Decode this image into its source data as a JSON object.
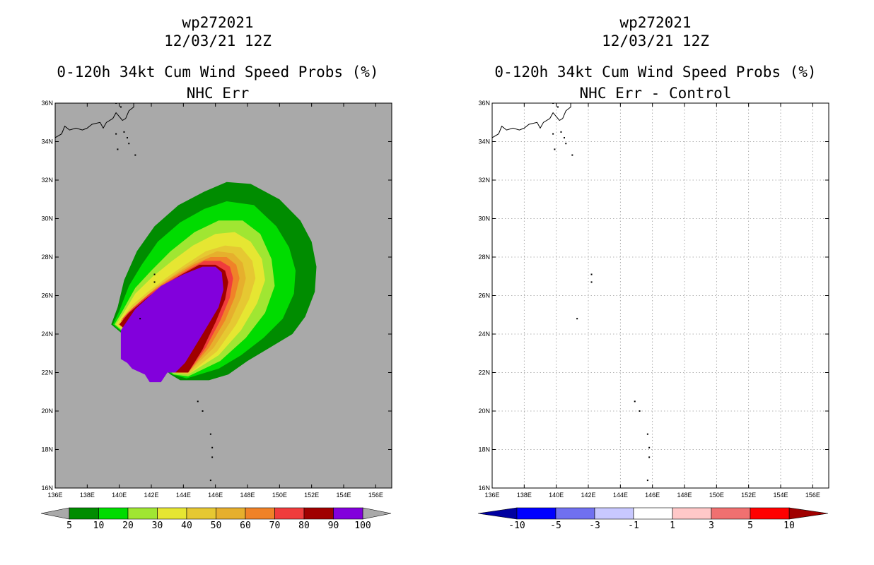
{
  "chart_data": [
    {
      "type": "heatmap",
      "panel": "left",
      "title_line1": "wp272021",
      "title_line2": "12/03/21 12Z",
      "title_line3": "0-120h 34kt Cum Wind Speed Probs (%)",
      "title_line4": "NHC Err",
      "xlim": [
        136,
        157
      ],
      "ylim": [
        16,
        36
      ],
      "x_ticks": [
        "136E",
        "138E",
        "140E",
        "142E",
        "144E",
        "146E",
        "148E",
        "150E",
        "152E",
        "154E",
        "156E"
      ],
      "y_ticks": [
        "16N",
        "18N",
        "20N",
        "22N",
        "24N",
        "26N",
        "28N",
        "30N",
        "32N",
        "34N",
        "36N"
      ],
      "grid": false,
      "background": "#a9a9a9",
      "colorbar": {
        "levels": [
          "5",
          "10",
          "20",
          "30",
          "40",
          "50",
          "60",
          "70",
          "80",
          "90",
          "100"
        ],
        "colors": [
          "#008c00",
          "#00dc00",
          "#a0e632",
          "#e6e632",
          "#e6c832",
          "#e6af2d",
          "#f08228",
          "#f03c3c",
          "#a00000",
          "#8200dc"
        ]
      },
      "probability_field_contours": [
        {
          "min": 5,
          "color": "#008c00",
          "points": [
            [
              143.8,
              21.6
            ],
            [
              145.6,
              21.6
            ],
            [
              146.8,
              21.9
            ],
            [
              148.0,
              22.6
            ],
            [
              149.6,
              23.4
            ],
            [
              150.8,
              24.0
            ],
            [
              151.6,
              24.9
            ],
            [
              152.2,
              26.2
            ],
            [
              152.3,
              27.5
            ],
            [
              152.0,
              28.8
            ],
            [
              151.3,
              29.9
            ],
            [
              150.0,
              31.0
            ],
            [
              148.2,
              31.8
            ],
            [
              146.7,
              31.9
            ],
            [
              145.3,
              31.4
            ],
            [
              143.7,
              30.7
            ],
            [
              142.2,
              29.6
            ],
            [
              141.1,
              28.3
            ],
            [
              140.3,
              26.8
            ],
            [
              139.9,
              25.4
            ],
            [
              139.5,
              24.5
            ],
            [
              143.2,
              21.9
            ]
          ]
        },
        {
          "min": 10,
          "color": "#00dc00",
          "points": [
            [
              144.2,
              21.7
            ],
            [
              146.2,
              22.2
            ],
            [
              147.6,
              22.9
            ],
            [
              149.0,
              23.8
            ],
            [
              150.2,
              24.8
            ],
            [
              150.9,
              26.1
            ],
            [
              151.0,
              27.3
            ],
            [
              150.6,
              28.5
            ],
            [
              149.8,
              29.6
            ],
            [
              148.4,
              30.7
            ],
            [
              146.7,
              30.9
            ],
            [
              145.3,
              30.5
            ],
            [
              143.8,
              29.8
            ],
            [
              142.4,
              28.8
            ],
            [
              141.4,
              27.6
            ],
            [
              140.6,
              26.5
            ],
            [
              140.0,
              25.2
            ],
            [
              139.6,
              24.5
            ],
            [
              143.3,
              21.9
            ]
          ]
        },
        {
          "min": 20,
          "color": "#a0e632",
          "points": [
            [
              144.3,
              21.8
            ],
            [
              146.3,
              22.6
            ],
            [
              147.9,
              23.8
            ],
            [
              149.1,
              25.1
            ],
            [
              149.7,
              26.5
            ],
            [
              149.5,
              27.9
            ],
            [
              148.8,
              29.2
            ],
            [
              147.7,
              29.9
            ],
            [
              146.2,
              29.9
            ],
            [
              144.7,
              29.3
            ],
            [
              143.2,
              28.3
            ],
            [
              142.0,
              27.3
            ],
            [
              141.0,
              26.4
            ],
            [
              140.2,
              25.2
            ],
            [
              139.7,
              24.5
            ],
            [
              143.4,
              21.9
            ]
          ]
        },
        {
          "min": 30,
          "color": "#e6e632",
          "points": [
            [
              144.3,
              21.9
            ],
            [
              146.2,
              22.9
            ],
            [
              147.6,
              24.2
            ],
            [
              148.6,
              25.6
            ],
            [
              149.1,
              26.8
            ],
            [
              148.9,
              27.9
            ],
            [
              148.2,
              28.8
            ],
            [
              147.2,
              29.3
            ],
            [
              146.0,
              29.2
            ],
            [
              144.6,
              28.6
            ],
            [
              143.3,
              27.8
            ],
            [
              142.1,
              27.0
            ],
            [
              141.0,
              26.1
            ],
            [
              140.2,
              25.0
            ],
            [
              139.8,
              24.5
            ],
            [
              143.4,
              22.0
            ]
          ]
        },
        {
          "min": 40,
          "color": "#e6c832",
          "points": [
            [
              144.3,
              21.9
            ],
            [
              146.1,
              23.1
            ],
            [
              147.3,
              24.5
            ],
            [
              148.1,
              25.8
            ],
            [
              148.5,
              26.9
            ],
            [
              148.3,
              27.8
            ],
            [
              147.6,
              28.5
            ],
            [
              146.6,
              28.6
            ],
            [
              145.4,
              28.3
            ],
            [
              144.1,
              27.6
            ],
            [
              142.9,
              26.9
            ],
            [
              141.8,
              26.2
            ],
            [
              140.8,
              25.5
            ],
            [
              140.1,
              24.7
            ],
            [
              139.9,
              24.5
            ],
            [
              143.5,
              22.0
            ]
          ]
        },
        {
          "min": 50,
          "color": "#e6af2d",
          "points": [
            [
              144.3,
              22.0
            ],
            [
              145.9,
              23.3
            ],
            [
              146.9,
              24.6
            ],
            [
              147.6,
              25.9
            ],
            [
              147.9,
              26.9
            ],
            [
              147.7,
              27.7
            ],
            [
              147.1,
              28.2
            ],
            [
              146.1,
              28.3
            ],
            [
              145.0,
              27.9
            ],
            [
              143.8,
              27.3
            ],
            [
              142.6,
              26.6
            ],
            [
              141.6,
              25.9
            ],
            [
              140.7,
              25.2
            ],
            [
              140.1,
              24.7
            ],
            [
              143.5,
              22.0
            ]
          ]
        },
        {
          "min": 60,
          "color": "#f08228",
          "points": [
            [
              144.3,
              22.0
            ],
            [
              145.6,
              23.3
            ],
            [
              146.6,
              24.7
            ],
            [
              147.2,
              25.9
            ],
            [
              147.5,
              26.9
            ],
            [
              147.3,
              27.6
            ],
            [
              146.7,
              28.0
            ],
            [
              145.7,
              28.0
            ],
            [
              144.6,
              27.6
            ],
            [
              143.4,
              27.0
            ],
            [
              142.3,
              26.4
            ],
            [
              141.3,
              25.7
            ],
            [
              140.5,
              25.1
            ],
            [
              140.1,
              24.7
            ],
            [
              143.5,
              22.0
            ]
          ]
        },
        {
          "min": 70,
          "color": "#f03c3c",
          "points": [
            [
              144.3,
              22.0
            ],
            [
              145.4,
              23.3
            ],
            [
              146.3,
              24.7
            ],
            [
              146.9,
              25.9
            ],
            [
              147.1,
              26.9
            ],
            [
              146.9,
              27.5
            ],
            [
              146.3,
              27.8
            ],
            [
              145.3,
              27.8
            ],
            [
              144.2,
              27.3
            ],
            [
              143.0,
              26.7
            ],
            [
              141.9,
              26.1
            ],
            [
              140.9,
              25.4
            ],
            [
              140.2,
              24.8
            ],
            [
              143.5,
              22.0
            ]
          ]
        },
        {
          "min": 80,
          "color": "#a00000",
          "points": [
            [
              144.3,
              22.0
            ],
            [
              145.2,
              23.2
            ],
            [
              146.0,
              24.6
            ],
            [
              146.6,
              25.8
            ],
            [
              146.8,
              26.7
            ],
            [
              146.6,
              27.3
            ],
            [
              146.0,
              27.6
            ],
            [
              145.0,
              27.6
            ],
            [
              143.9,
              27.1
            ],
            [
              142.7,
              26.5
            ],
            [
              141.6,
              25.8
            ],
            [
              140.6,
              25.1
            ],
            [
              140.0,
              24.5
            ],
            [
              143.5,
              22.0
            ]
          ]
        }
      ],
      "track_region_100pct": {
        "color": "#8200dc",
        "points": [
          [
            140.1,
            22.7
          ],
          [
            140.1,
            24.2
          ],
          [
            141.0,
            25.3
          ],
          [
            142.6,
            26.5
          ],
          [
            144.0,
            27.1
          ],
          [
            145.2,
            27.5
          ],
          [
            146.0,
            27.5
          ],
          [
            146.4,
            27.2
          ],
          [
            146.5,
            26.3
          ],
          [
            146.2,
            25.4
          ],
          [
            145.2,
            24.0
          ],
          [
            144.1,
            22.5
          ],
          [
            143.5,
            22.0
          ],
          [
            143.0,
            22.0
          ],
          [
            142.6,
            21.5
          ],
          [
            141.9,
            21.5
          ],
          [
            141.6,
            21.9
          ],
          [
            140.8,
            22.2
          ],
          [
            140.5,
            22.5
          ]
        ]
      }
    },
    {
      "type": "heatmap",
      "panel": "right",
      "title_line1": "wp272021",
      "title_line2": "12/03/21 12Z",
      "title_line3": "0-120h 34kt Cum Wind Speed Probs (%)",
      "title_line4": "NHC Err - Control",
      "xlim": [
        136,
        157
      ],
      "ylim": [
        16,
        36
      ],
      "x_ticks": [
        "136E",
        "138E",
        "140E",
        "142E",
        "144E",
        "146E",
        "148E",
        "150E",
        "152E",
        "154E",
        "156E"
      ],
      "y_ticks": [
        "16N",
        "18N",
        "20N",
        "22N",
        "24N",
        "26N",
        "28N",
        "30N",
        "32N",
        "34N",
        "36N"
      ],
      "grid": true,
      "background": "#ffffff",
      "difference_field": "all values between -1 and 1",
      "colorbar": {
        "levels": [
          "-10",
          "-5",
          "-3",
          "-1",
          "1",
          "3",
          "5",
          "10"
        ],
        "colors": [
          "#0000a0",
          "#0000ff",
          "#7070f0",
          "#c8c8ff",
          "#ffffff",
          "#ffc8c8",
          "#f07070",
          "#ff0000",
          "#a00000"
        ]
      }
    }
  ]
}
